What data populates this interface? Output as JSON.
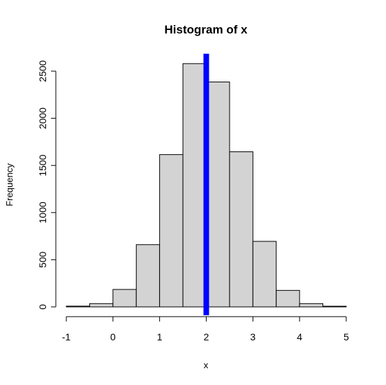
{
  "chart_data": {
    "type": "bar",
    "title": "Histogram of x",
    "xlabel": "x",
    "ylabel": "Frequency",
    "xlim": [
      -1,
      5
    ],
    "ylim": [
      0,
      2500
    ],
    "bin_width": 0.5,
    "bins": [
      {
        "x0": -1.0,
        "x1": -0.5,
        "count": 8
      },
      {
        "x0": -0.5,
        "x1": 0.0,
        "count": 35
      },
      {
        "x0": 0.0,
        "x1": 0.5,
        "count": 185
      },
      {
        "x0": 0.5,
        "x1": 1.0,
        "count": 660
      },
      {
        "x0": 1.0,
        "x1": 1.5,
        "count": 1615
      },
      {
        "x0": 1.5,
        "x1": 2.0,
        "count": 2580
      },
      {
        "x0": 2.0,
        "x1": 2.5,
        "count": 2385
      },
      {
        "x0": 2.5,
        "x1": 3.0,
        "count": 1645
      },
      {
        "x0": 3.0,
        "x1": 3.5,
        "count": 695
      },
      {
        "x0": 3.5,
        "x1": 4.0,
        "count": 175
      },
      {
        "x0": 4.0,
        "x1": 4.5,
        "count": 35
      },
      {
        "x0": 4.5,
        "x1": 5.0,
        "count": 7
      }
    ],
    "x_ticks": [
      {
        "value": -1,
        "label": "-1"
      },
      {
        "value": 0,
        "label": "0"
      },
      {
        "value": 1,
        "label": "1"
      },
      {
        "value": 2,
        "label": "2"
      },
      {
        "value": 3,
        "label": "3"
      },
      {
        "value": 4,
        "label": "4"
      },
      {
        "value": 5,
        "label": "5"
      }
    ],
    "y_ticks": [
      {
        "value": 0,
        "label": "0"
      },
      {
        "value": 500,
        "label": "500"
      },
      {
        "value": 1000,
        "label": "1000"
      },
      {
        "value": 1500,
        "label": "1500"
      },
      {
        "value": 2000,
        "label": "2000"
      },
      {
        "value": 2500,
        "label": "2500"
      }
    ],
    "vertical_line": {
      "x": 2,
      "color": "#0000ff"
    },
    "bar_fill": "#d3d3d3",
    "bar_stroke": "#000000",
    "grid": false
  }
}
